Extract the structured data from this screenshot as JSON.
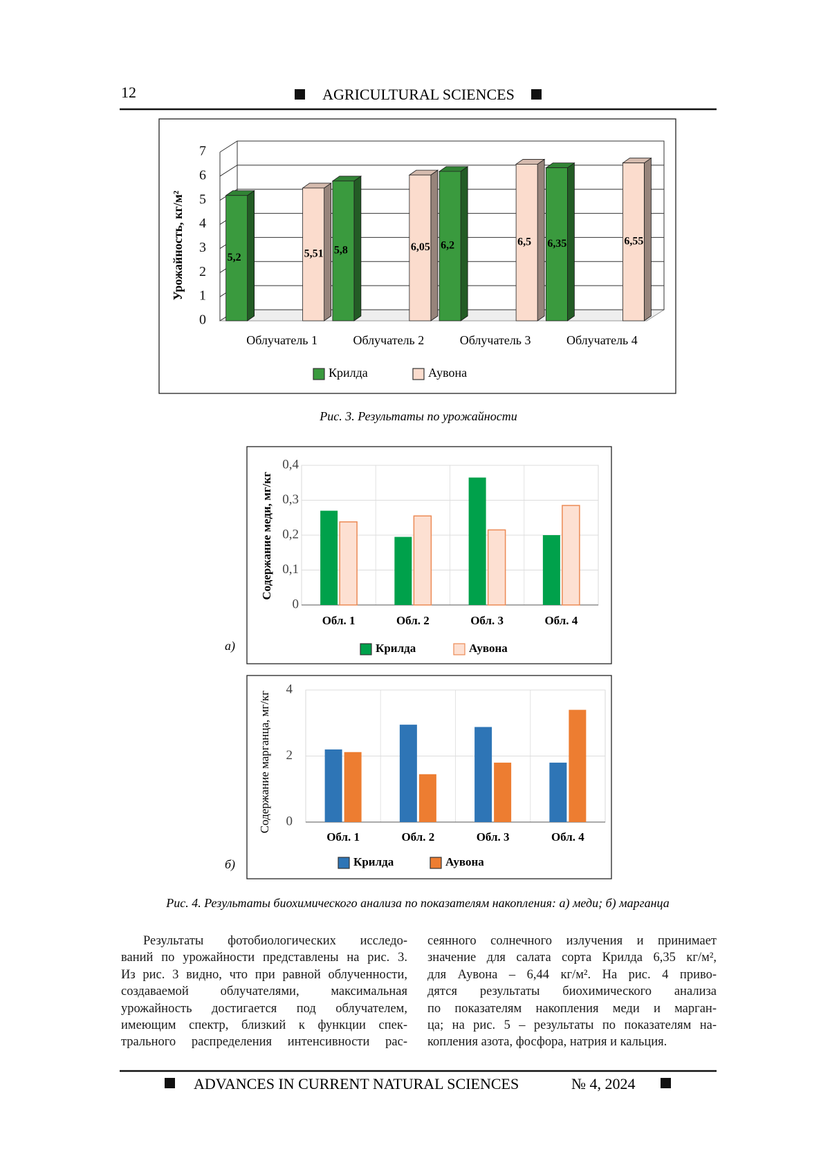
{
  "header": {
    "page_number": "12",
    "section": "AGRICULTURAL SCIENCES"
  },
  "chart_data": [
    {
      "type": "bar3d",
      "y_label": "Урожайность, кг/м²",
      "categories": [
        "Облучатель 1",
        "Облучатель 2",
        "Облучатель 3",
        "Облучатель 4"
      ],
      "series": [
        {
          "name": "Крилда",
          "color": "#3a9a3e",
          "values": [
            5.2,
            5.8,
            6.2,
            6.35
          ],
          "value_labels": [
            "5,2",
            "5,8",
            "6,2",
            "6,35"
          ]
        },
        {
          "name": "Аувона",
          "color": "#fbdccd",
          "values": [
            5.51,
            6.05,
            6.5,
            6.55
          ],
          "value_labels": [
            "5,51",
            "6,05",
            "6,5",
            "6,55"
          ]
        }
      ],
      "ylim": [
        0,
        7
      ],
      "yticks": [
        0,
        1,
        2,
        3,
        4,
        5,
        6,
        7
      ],
      "grid": true
    },
    {
      "type": "bar",
      "y_label": "Содержание меди, мг/кг",
      "categories": [
        "Обл. 1",
        "Обл. 2",
        "Обл. 3",
        "Обл. 4"
      ],
      "series": [
        {
          "name": "Крилда",
          "color": "#00a14b",
          "values": [
            0.27,
            0.195,
            0.365,
            0.2
          ]
        },
        {
          "name": "Аувона",
          "color": "#fde0d2",
          "edgecolor": "#ec8a55",
          "values": [
            0.238,
            0.255,
            0.215,
            0.285
          ]
        }
      ],
      "ylim": [
        0,
        0.4
      ],
      "yticks": [
        0,
        {
          "value": 0.1,
          "label": "0,1"
        },
        {
          "value": 0.2,
          "label": "0,2"
        },
        {
          "value": 0.3,
          "label": "0,3"
        },
        {
          "value": 0.4,
          "label": "0,4"
        }
      ],
      "grid": true
    },
    {
      "type": "bar",
      "y_label": "Содержание марганца, мг/кг",
      "categories": [
        "Обл. 1",
        "Обл. 2",
        "Обл. 3",
        "Обл. 4"
      ],
      "series": [
        {
          "name": "Крилда",
          "color": "#2e75b6",
          "values": [
            2.2,
            2.95,
            2.88,
            1.8
          ]
        },
        {
          "name": "Аувона",
          "color": "#ed7d31",
          "values": [
            2.12,
            1.45,
            1.8,
            3.4
          ]
        }
      ],
      "ylim": [
        0,
        4
      ],
      "yticks": [
        0,
        2,
        4
      ],
      "grid": true
    }
  ],
  "figure3_caption": "Рис. 3. Результаты по урожайности",
  "panel_labels": [
    "а)",
    "б)"
  ],
  "figure4_caption": "Рис. 4. Результаты биохимического анализа по показателям накопления: а) меди; б) марганца",
  "body": {
    "left_lines": [
      "Результаты фотобиологических исследо-",
      "ваний по урожайности представлены на рис. 3.",
      "Из рис. 3 видно, что при равной облученности,",
      "создаваемой облучателями, максимальная",
      "урожайность достигается под облучателем,",
      "имеющим спектр, близкий к функции спек-",
      "трального распределения интенсивности рас-"
    ],
    "right_lines": [
      "сеянного солнечного излучения и принимает",
      "значение для салата сорта Крилда 6,35 кг/м²,",
      "для Аувона – 6,44 кг/м². На рис. 4 приво-",
      "дятся результаты биохимического анализа",
      "по показателям накопления меди и марган-",
      "ца; на рис. 5 – результаты по показателям на-",
      "копления азота, фосфора, натрия и кальция."
    ]
  },
  "footer": {
    "journal": "ADVANCES IN CURRENT NATURAL SCIENCES",
    "issue": "№ 4, 2024"
  }
}
